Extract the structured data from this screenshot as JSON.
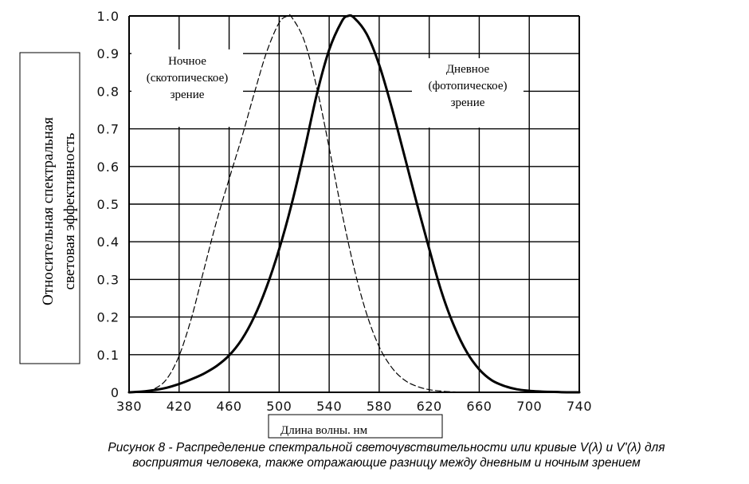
{
  "chart_data": {
    "type": "line",
    "xlabel": "Длина волны. нм",
    "ylabel": [
      "Относительная спектральная",
      "световая эффективность"
    ],
    "xlim": [
      380,
      740
    ],
    "ylim": [
      0,
      1.0
    ],
    "grid": true,
    "x_ticks": [
      "380",
      "420",
      "460",
      "500",
      "540",
      "580",
      "620",
      "660",
      "700",
      "740"
    ],
    "y_ticks": [
      "0",
      "0.1",
      "0.2",
      "0.3",
      "0.4",
      "0.5",
      "0.6",
      "0.7",
      "0.8",
      "0.9",
      "1.0"
    ],
    "series": [
      {
        "name": "Ночное (скотопическое) зрение",
        "style": "dashed",
        "x": [
          380,
          390,
          400,
          410,
          420,
          430,
          440,
          450,
          460,
          470,
          480,
          490,
          500,
          507,
          510,
          520,
          530,
          540,
          550,
          560,
          570,
          580,
          590,
          600,
          610,
          620,
          630,
          640,
          650
        ],
        "y": [
          0.0,
          0.002,
          0.009,
          0.035,
          0.097,
          0.199,
          0.328,
          0.455,
          0.567,
          0.676,
          0.793,
          0.904,
          0.982,
          1.0,
          0.997,
          0.935,
          0.811,
          0.65,
          0.481,
          0.329,
          0.208,
          0.121,
          0.066,
          0.033,
          0.016,
          0.007,
          0.003,
          0.001,
          0.0
        ]
      },
      {
        "name": "Дневное (фотопическое) зрение",
        "style": "solid",
        "x": [
          380,
          390,
          400,
          410,
          420,
          430,
          440,
          450,
          460,
          470,
          480,
          490,
          500,
          510,
          520,
          530,
          540,
          550,
          555,
          560,
          570,
          580,
          590,
          600,
          610,
          620,
          630,
          640,
          650,
          660,
          670,
          680,
          690,
          700,
          710,
          720,
          730,
          740
        ],
        "y": [
          0.0,
          0.002,
          0.006,
          0.012,
          0.022,
          0.035,
          0.05,
          0.07,
          0.098,
          0.14,
          0.2,
          0.28,
          0.38,
          0.5,
          0.64,
          0.79,
          0.91,
          0.985,
          1.0,
          0.995,
          0.952,
          0.87,
          0.757,
          0.631,
          0.503,
          0.381,
          0.265,
          0.175,
          0.107,
          0.061,
          0.032,
          0.017,
          0.008,
          0.004,
          0.002,
          0.001,
          0.0,
          0.0
        ]
      }
    ],
    "annotations": [
      {
        "lines": [
          "Ночное",
          "(скотопическое)",
          "зрение"
        ]
      },
      {
        "lines": [
          "Дневное",
          "(фотопическое)",
          "зрение"
        ]
      }
    ]
  },
  "caption": [
    "Рисунок 8 - Распределение спектральной светочувствительности или кривые V(λ) и V'(λ) для",
    "восприятия человека, также отражающие разницу между дневным и ночным зрением"
  ]
}
